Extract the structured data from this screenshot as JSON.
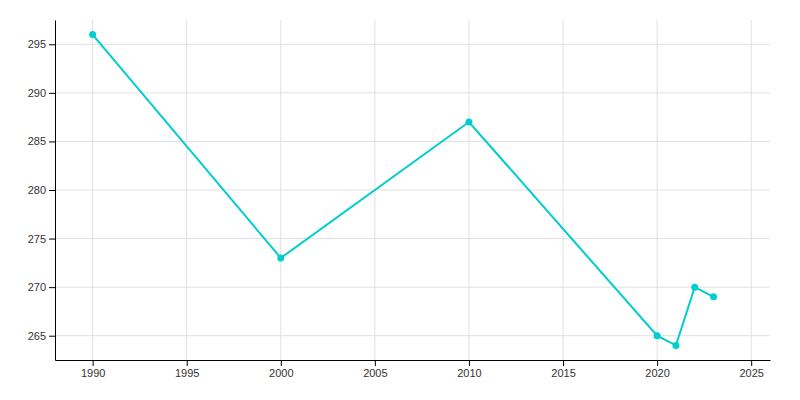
{
  "chart_data": {
    "type": "line",
    "x": [
      1990,
      2000,
      2010,
      2020,
      2021,
      2022,
      2023
    ],
    "values": [
      296,
      273,
      287,
      265,
      264,
      270,
      269
    ],
    "color": "#00CDCD",
    "marker": "circle",
    "xlim": [
      1988,
      2026
    ],
    "ylim": [
      262.5,
      297.5
    ],
    "xticks": [
      1990,
      1995,
      2000,
      2005,
      2010,
      2015,
      2020,
      2025
    ],
    "yticks": [
      265,
      270,
      275,
      280,
      285,
      290,
      295
    ],
    "grid": true
  }
}
